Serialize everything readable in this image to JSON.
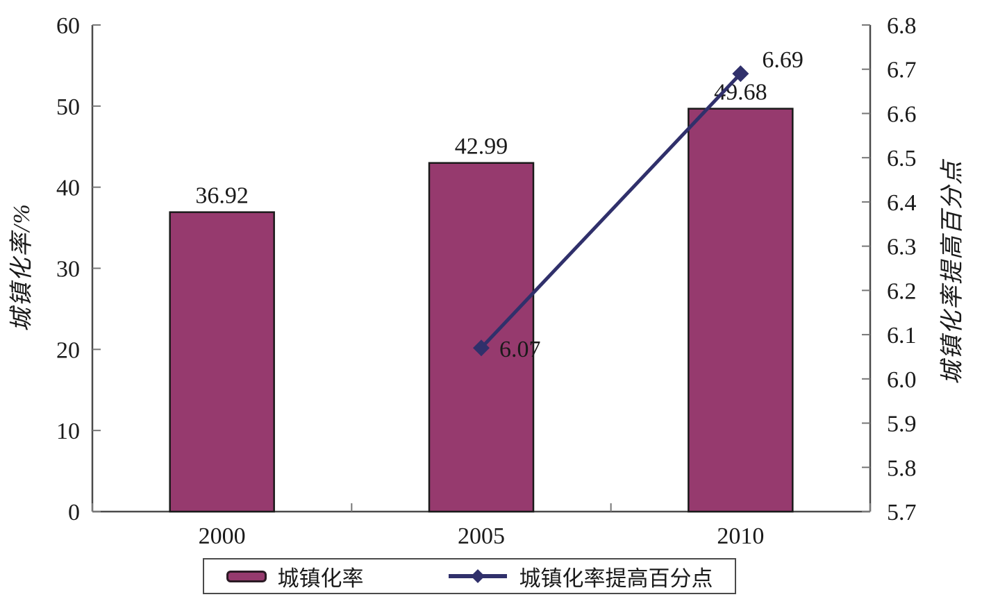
{
  "chart_data": {
    "type": "combo-bar-line-dual-axis",
    "title": "",
    "categories": [
      "2000",
      "2005",
      "2010"
    ],
    "series": [
      {
        "name": "城镇化率",
        "type": "bar",
        "axis": "left",
        "values": [
          36.92,
          42.99,
          49.68
        ],
        "labels": [
          "36.92",
          "42.99",
          "49.68"
        ],
        "color": "#963a6e",
        "border_color": "#1a1a1a"
      },
      {
        "name": "城镇化率提高百分点",
        "type": "line",
        "axis": "right",
        "marker": "diamond",
        "values": [
          null,
          6.07,
          6.69
        ],
        "labels": [
          "",
          "6.07",
          "6.69"
        ],
        "color": "#30306b"
      }
    ],
    "left_axis": {
      "label": "城镇化率/%",
      "min": 0,
      "max": 60,
      "step": 10,
      "ticks": [
        "0",
        "10",
        "20",
        "30",
        "40",
        "50",
        "60"
      ]
    },
    "right_axis": {
      "label": "城镇化率提高百分点",
      "min": 5.7,
      "max": 6.8,
      "step": 0.1,
      "ticks": [
        "5.7",
        "5.8",
        "5.9",
        "6.0",
        "6.1",
        "6.2",
        "6.3",
        "6.4",
        "6.5",
        "6.6",
        "6.7",
        "6.8"
      ]
    },
    "x_axis": {
      "tick_labels": [
        "2000",
        "2005",
        "2010"
      ]
    },
    "grid": "off",
    "legend": {
      "position": "bottom",
      "border": true,
      "items": [
        {
          "label": "城镇化率",
          "swatch": "bar",
          "color": "#963a6e"
        },
        {
          "label": "城镇化率提高百分点",
          "swatch": "line-diamond",
          "color": "#30306b"
        }
      ]
    },
    "colors": {
      "bar_fill": "#963a6e",
      "bar_border": "#1a1a1a",
      "line": "#30306b",
      "axis": "#4a4a4a",
      "text": "#1a1a1a",
      "background": "#ffffff"
    }
  }
}
